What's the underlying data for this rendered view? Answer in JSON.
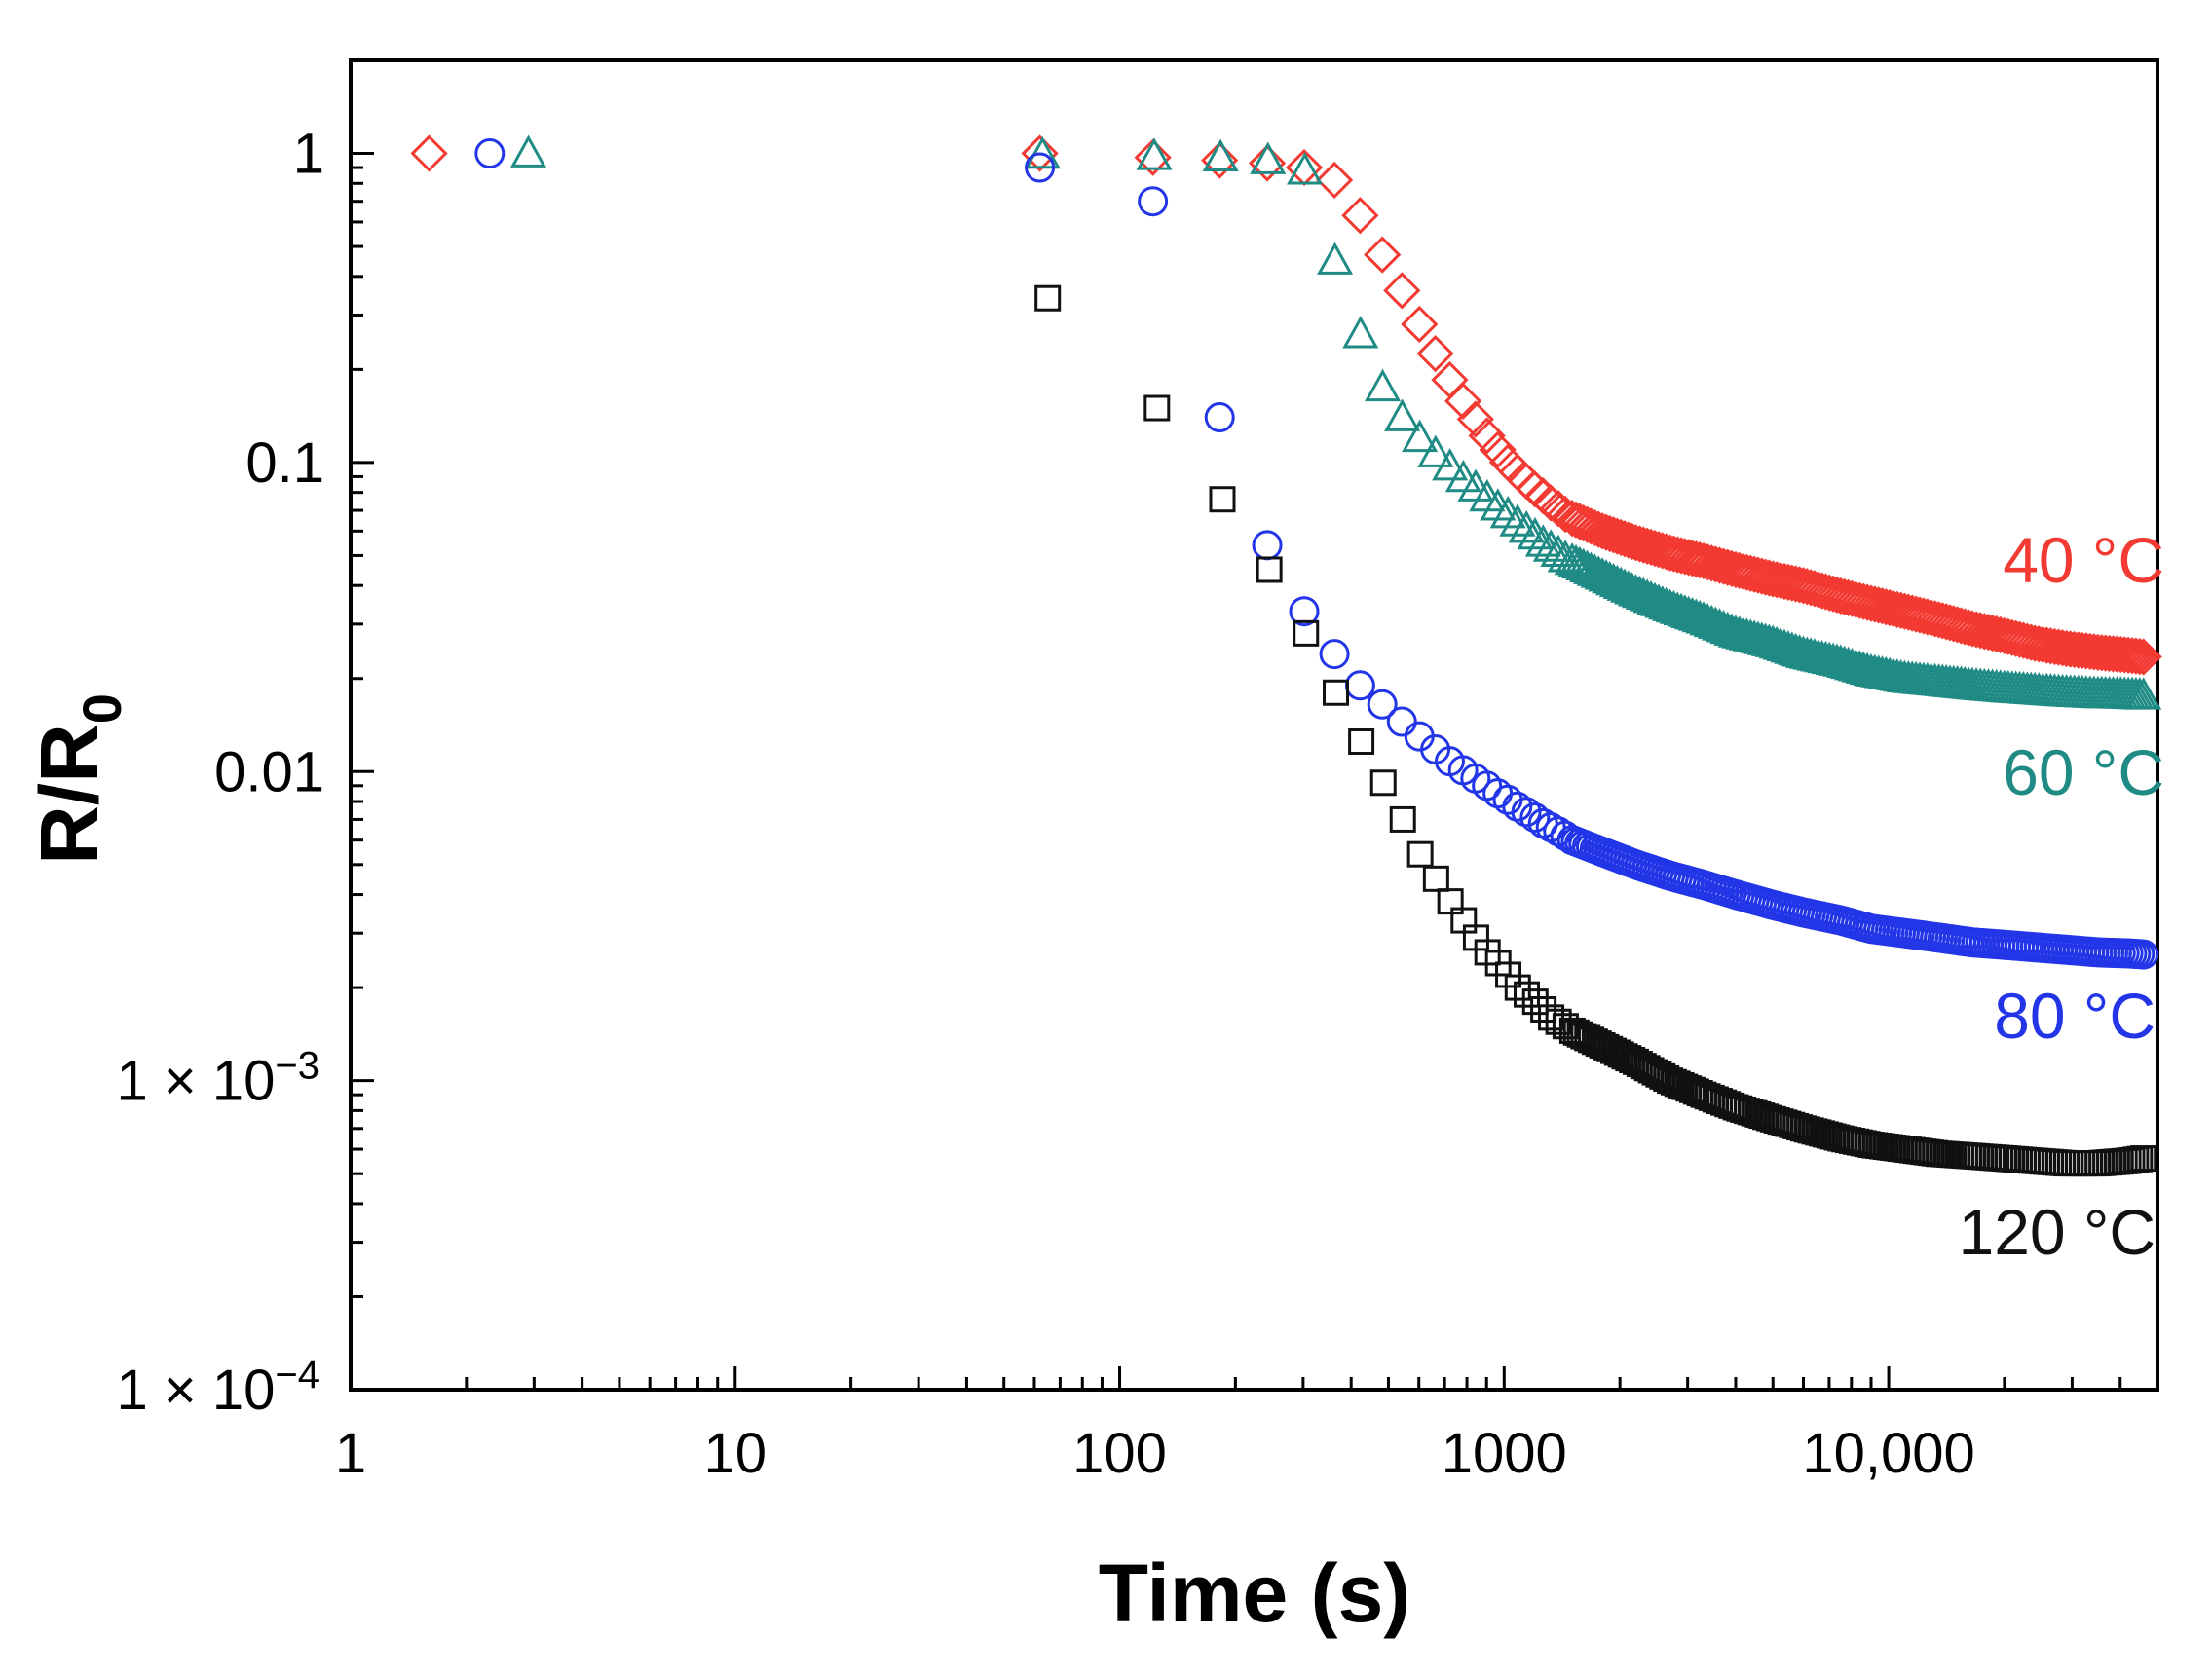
{
  "chart_data": {
    "type": "scatter",
    "title": "",
    "xlabel": "Time (s)",
    "ylabel": {
      "main": "R/R",
      "sub": "0"
    },
    "x_scale": "log",
    "y_scale": "log",
    "xlim": [
      1,
      50000
    ],
    "ylim": [
      0.0001,
      2
    ],
    "grid": false,
    "x_ticks": [
      {
        "value": 1,
        "label": "1"
      },
      {
        "value": 10,
        "label": "10"
      },
      {
        "value": 100,
        "label": "100"
      },
      {
        "value": 1000,
        "label": "1000"
      },
      {
        "value": 10000,
        "label": "10,000"
      }
    ],
    "y_ticks": [
      {
        "value": 1,
        "label": "1"
      },
      {
        "value": 0.1,
        "label": "0.1"
      },
      {
        "value": 0.01,
        "label": "0.01"
      },
      {
        "value": 0.001,
        "label": "1 × 10",
        "exp": "−3"
      },
      {
        "value": 0.0001,
        "label": "1 × 10",
        "exp": "−4"
      }
    ],
    "series": [
      {
        "name": "40 °C",
        "marker": "diamond",
        "color": "#f23a32",
        "x": [
          1.6,
          62,
          122,
          182,
          242,
          302,
          362,
          422,
          482,
          542,
          602,
          662,
          722,
          782,
          842,
          902,
          962,
          1022,
          1082,
          1142,
          1202,
          1262,
          1322,
          1382,
          1442,
          1502,
          1800,
          2200,
          2700,
          3300,
          4000,
          5000,
          6000,
          7500,
          9000,
          11000,
          13500,
          16500,
          20000,
          24000,
          29000,
          35000,
          42000,
          46000
        ],
        "values": [
          1.0,
          1.0,
          0.97,
          0.95,
          0.93,
          0.9,
          0.82,
          0.63,
          0.47,
          0.36,
          0.28,
          0.225,
          0.185,
          0.158,
          0.138,
          0.122,
          0.11,
          0.1,
          0.093,
          0.087,
          0.082,
          0.078,
          0.074,
          0.071,
          0.068,
          0.066,
          0.06,
          0.055,
          0.051,
          0.048,
          0.045,
          0.042,
          0.04,
          0.037,
          0.035,
          0.033,
          0.031,
          0.029,
          0.0275,
          0.026,
          0.025,
          0.0243,
          0.0238,
          0.0235
        ]
      },
      {
        "name": "60 °C",
        "marker": "triangle",
        "color": "#1f8b84",
        "x": [
          2.9,
          63,
          123,
          183,
          243,
          303,
          363,
          423,
          483,
          543,
          603,
          663,
          723,
          783,
          843,
          903,
          963,
          1023,
          1083,
          1143,
          1203,
          1263,
          1323,
          1383,
          1443,
          1503,
          1800,
          2200,
          2700,
          3300,
          4000,
          5000,
          6000,
          7500,
          9000,
          11000,
          13500,
          16500,
          20000,
          24000,
          29000,
          35000,
          42000,
          46000
        ],
        "values": [
          1.0,
          0.99,
          0.98,
          0.97,
          0.95,
          0.88,
          0.45,
          0.26,
          0.175,
          0.14,
          0.12,
          0.107,
          0.097,
          0.089,
          0.083,
          0.077,
          0.072,
          0.068,
          0.064,
          0.061,
          0.058,
          0.055,
          0.053,
          0.051,
          0.049,
          0.048,
          0.043,
          0.038,
          0.034,
          0.031,
          0.028,
          0.026,
          0.024,
          0.0225,
          0.021,
          0.02,
          0.0195,
          0.019,
          0.0186,
          0.0183,
          0.018,
          0.0178,
          0.0177,
          0.0176
        ]
      },
      {
        "name": "80 °C",
        "marker": "circle",
        "color": "#2236e8",
        "x": [
          2.3,
          62,
          122,
          182,
          242,
          302,
          362,
          422,
          482,
          542,
          602,
          662,
          722,
          782,
          842,
          902,
          962,
          1022,
          1082,
          1142,
          1202,
          1262,
          1322,
          1382,
          1442,
          1502,
          1800,
          2200,
          2700,
          3300,
          4000,
          5000,
          6000,
          7500,
          9000,
          11000,
          13500,
          16500,
          20000,
          24000,
          29000,
          35000,
          42000,
          46000
        ],
        "values": [
          1.0,
          0.9,
          0.7,
          0.14,
          0.054,
          0.033,
          0.024,
          0.019,
          0.0165,
          0.0145,
          0.013,
          0.0118,
          0.0108,
          0.0101,
          0.0095,
          0.009,
          0.0085,
          0.0081,
          0.0077,
          0.0074,
          0.0071,
          0.0068,
          0.0066,
          0.0064,
          0.0062,
          0.006,
          0.0055,
          0.005,
          0.0046,
          0.0043,
          0.004,
          0.0037,
          0.0035,
          0.0033,
          0.0031,
          0.003,
          0.0029,
          0.0028,
          0.00275,
          0.0027,
          0.00265,
          0.0026,
          0.00258,
          0.00256
        ]
      },
      {
        "name": "120 °C",
        "marker": "square",
        "color": "#111111",
        "x": [
          65,
          125,
          185,
          245,
          305,
          365,
          425,
          485,
          545,
          605,
          665,
          725,
          785,
          845,
          905,
          965,
          1025,
          1085,
          1145,
          1205,
          1265,
          1325,
          1385,
          1445,
          1505,
          1800,
          2200,
          2700,
          3300,
          4000,
          5000,
          6000,
          7500,
          9000,
          11000,
          13500,
          16500,
          20000,
          24000,
          29000,
          35000,
          42000,
          46000
        ],
        "values": [
          0.34,
          0.15,
          0.076,
          0.045,
          0.028,
          0.018,
          0.0125,
          0.0092,
          0.007,
          0.0054,
          0.0045,
          0.0038,
          0.0033,
          0.0029,
          0.0026,
          0.0024,
          0.0022,
          0.002,
          0.0019,
          0.0018,
          0.0017,
          0.0016,
          0.00155,
          0.0015,
          0.00145,
          0.0013,
          0.00115,
          0.001,
          0.0009,
          0.00082,
          0.00075,
          0.0007,
          0.00065,
          0.00062,
          0.0006,
          0.00058,
          0.00057,
          0.00056,
          0.00055,
          0.00054,
          0.00054,
          0.00055,
          0.00056
        ]
      }
    ]
  }
}
